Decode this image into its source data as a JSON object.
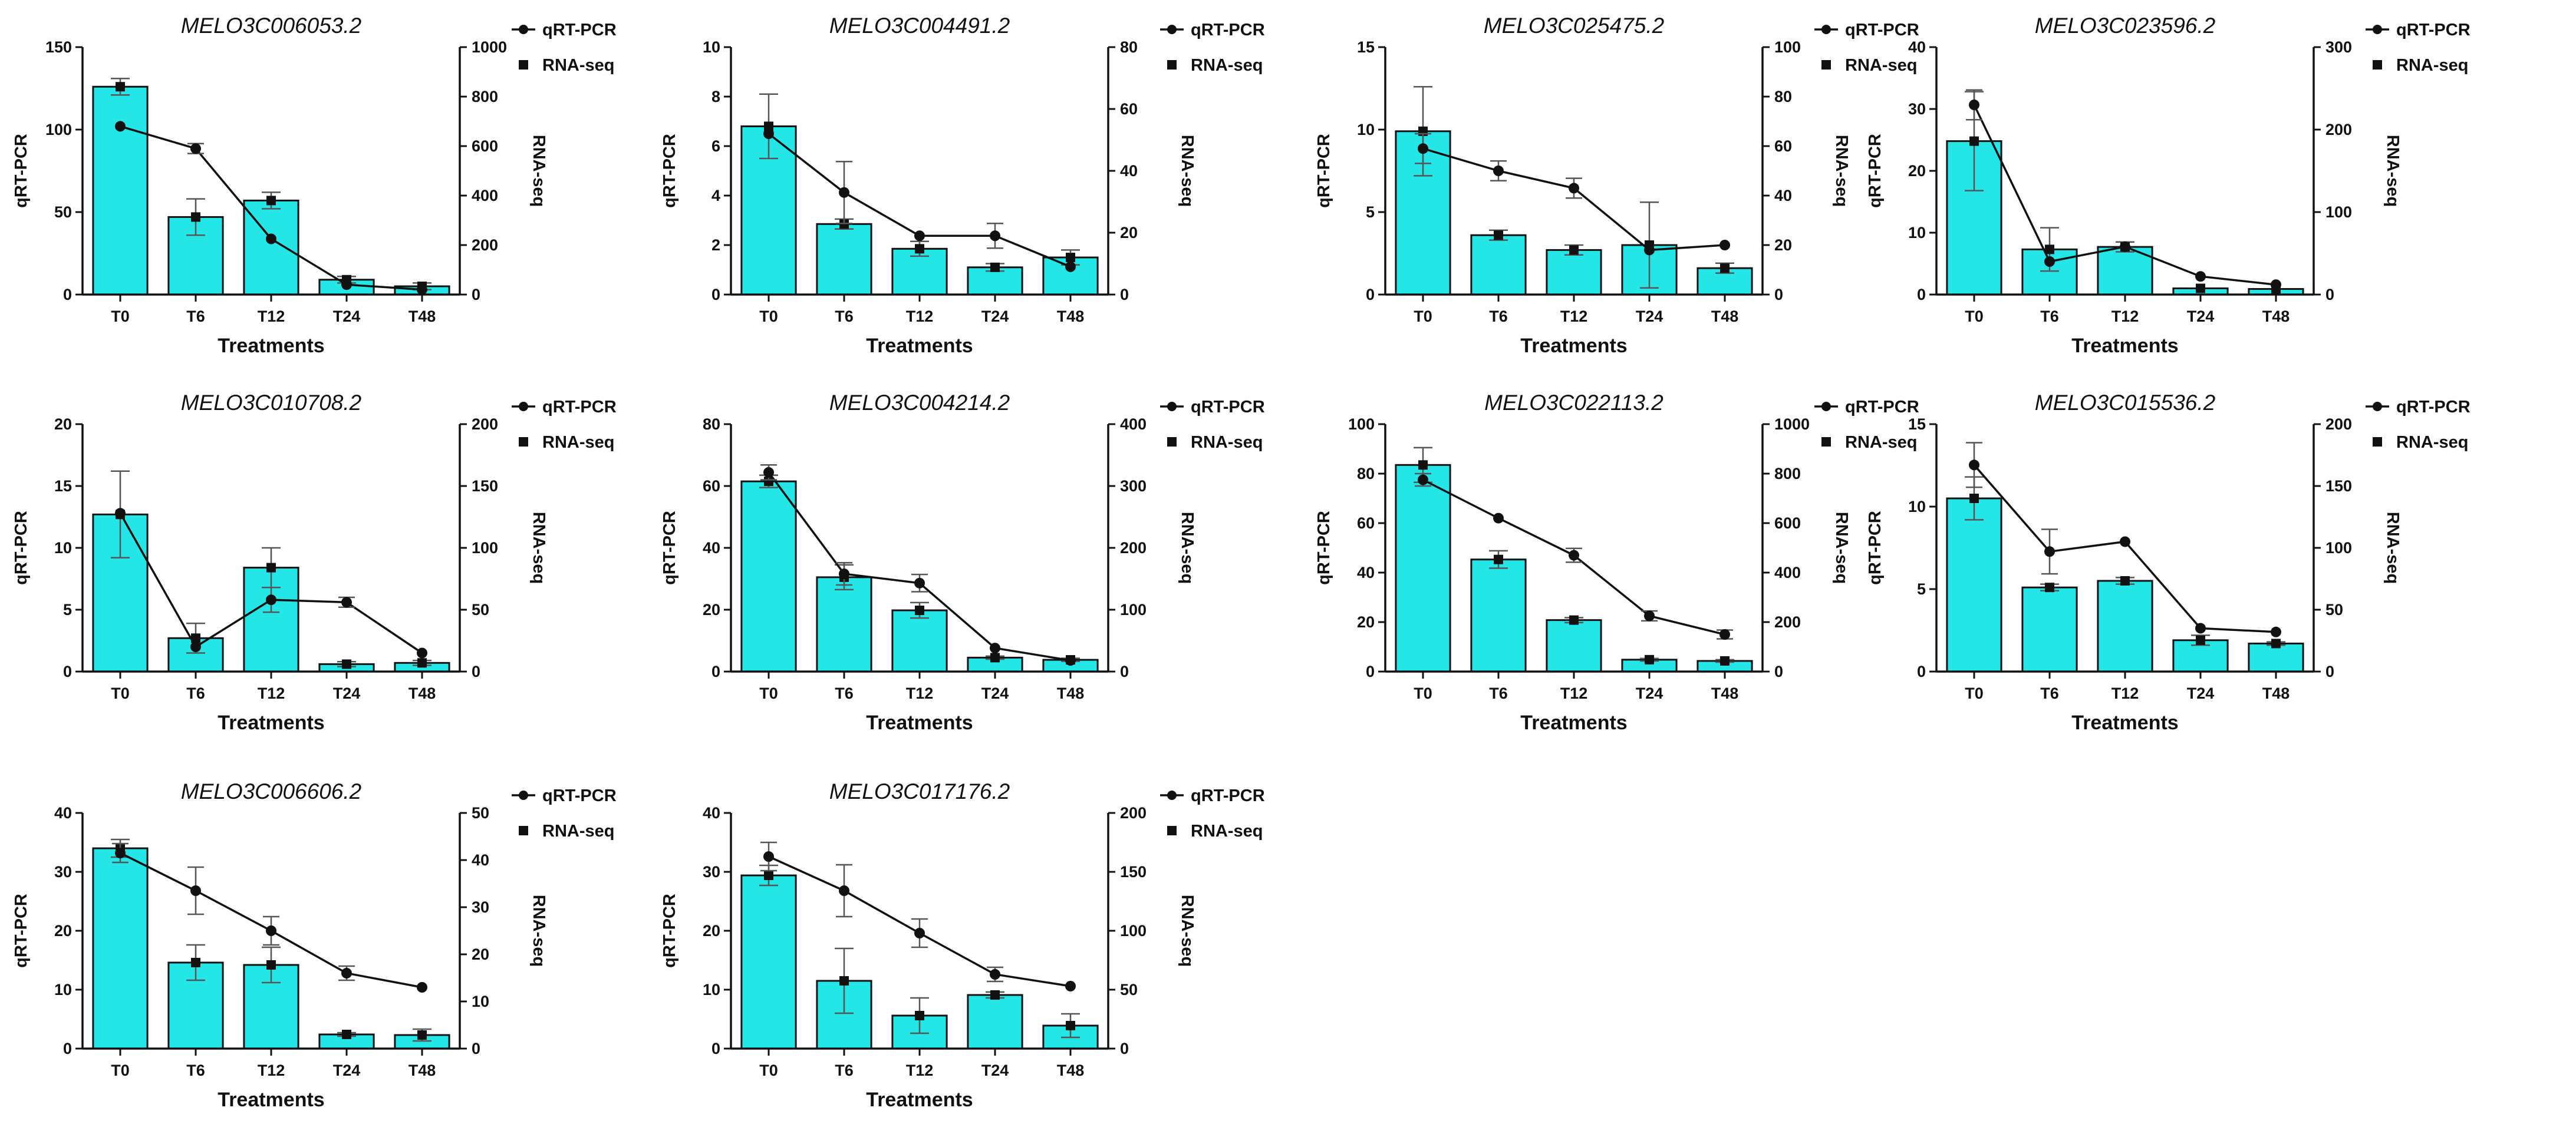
{
  "colors": {
    "bar_fill": "#25e6e6",
    "bar_stroke": "#111111",
    "line": "#111111",
    "axis": "#111111"
  },
  "chart_data": [
    {
      "type": "bar+line",
      "title": "MELO3C006053.2",
      "categories": [
        "T0",
        "T6",
        "T12",
        "T24",
        "T48"
      ],
      "xlabel": "Treatments",
      "ylabel_left": "qRT-PCR",
      "ylabel_right": "RNA-seq",
      "left_axis": {
        "range": [
          0,
          150
        ],
        "ticks": [
          0,
          50,
          100,
          150
        ]
      },
      "right_axis": {
        "range": [
          0,
          1000
        ],
        "ticks": [
          0,
          200,
          400,
          600,
          800,
          1000
        ]
      },
      "qRT_PCR": {
        "axis": "left",
        "values": [
          126,
          47,
          57,
          9,
          5
        ],
        "errors": [
          5,
          11,
          5,
          2,
          2
        ]
      },
      "RNA_seq": {
        "axis": "right",
        "values": [
          680,
          590,
          225,
          40,
          20
        ],
        "errors": [
          0,
          20,
          0,
          0,
          0
        ]
      },
      "legend": [
        "qRT-PCR",
        "RNA-seq"
      ]
    },
    {
      "type": "bar+line",
      "title": "MELO3C004491.2",
      "categories": [
        "T0",
        "T6",
        "T12",
        "T24",
        "T48"
      ],
      "xlabel": "Treatments",
      "ylabel_left": "qRT-PCR",
      "ylabel_right": "RNA-seq",
      "left_axis": {
        "range": [
          0,
          10
        ],
        "ticks": [
          0,
          2,
          4,
          6,
          8,
          10
        ]
      },
      "right_axis": {
        "range": [
          0,
          80
        ],
        "ticks": [
          0,
          20,
          40,
          60,
          80
        ]
      },
      "qRT_PCR": {
        "axis": "left",
        "values": [
          6.8,
          2.85,
          1.85,
          1.1,
          1.5
        ],
        "errors": [
          1.3,
          0.2,
          0.3,
          0.15,
          0.3
        ]
      },
      "RNA_seq": {
        "axis": "right",
        "values": [
          52,
          33,
          19,
          19,
          9
        ],
        "errors": [
          0,
          10,
          0,
          4,
          0
        ]
      },
      "legend": [
        "qRT-PCR",
        "RNA-seq"
      ]
    },
    {
      "type": "bar+line",
      "title": "MELO3C025475.2",
      "categories": [
        "T0",
        "T6",
        "T12",
        "T24",
        "T48"
      ],
      "xlabel": "Treatments",
      "ylabel_left": "qRT-PCR",
      "ylabel_right": "RNA-seq",
      "left_axis": {
        "range": [
          0,
          15
        ],
        "ticks": [
          0,
          5,
          10,
          15
        ]
      },
      "right_axis": {
        "range": [
          0,
          100
        ],
        "ticks": [
          0,
          20,
          40,
          60,
          80,
          100
        ]
      },
      "qRT_PCR": {
        "axis": "left",
        "values": [
          9.9,
          3.6,
          2.7,
          3.0,
          1.6
        ],
        "errors": [
          2.7,
          0.3,
          0.3,
          2.6,
          0.3
        ]
      },
      "RNA_seq": {
        "axis": "right",
        "values": [
          59,
          50,
          43,
          18,
          20
        ],
        "errors": [
          6,
          4,
          4,
          0,
          0
        ]
      },
      "legend": [
        "qRT-PCR",
        "RNA-seq"
      ]
    },
    {
      "type": "bar+line",
      "title": "MELO3C023596.2",
      "categories": [
        "T0",
        "T6",
        "T12",
        "T24",
        "T48"
      ],
      "xlabel": "Treatments",
      "ylabel_left": "qRT-PCR",
      "ylabel_right": "RNA-seq",
      "left_axis": {
        "range": [
          0,
          40
        ],
        "ticks": [
          0,
          10,
          20,
          30,
          40
        ]
      },
      "right_axis": {
        "range": [
          0,
          300
        ],
        "ticks": [
          0,
          100,
          200,
          300
        ]
      },
      "qRT_PCR": {
        "axis": "left",
        "values": [
          24.8,
          7.3,
          7.7,
          1.0,
          0.9
        ],
        "errors": [
          8,
          3.5,
          0.8,
          0,
          0
        ]
      },
      "RNA_seq": {
        "axis": "right",
        "values": [
          230,
          40,
          58,
          22,
          12
        ],
        "errors": [
          18,
          0,
          0,
          0,
          0
        ]
      },
      "legend": [
        "qRT-PCR",
        "RNA-seq"
      ]
    },
    {
      "type": "bar+line",
      "title": "MELO3C010708.2",
      "categories": [
        "T0",
        "T6",
        "T12",
        "T24",
        "T48"
      ],
      "xlabel": "Treatments",
      "ylabel_left": "qRT-PCR",
      "ylabel_right": "RNA-seq",
      "left_axis": {
        "range": [
          0,
          20
        ],
        "ticks": [
          0,
          5,
          10,
          15,
          20
        ]
      },
      "right_axis": {
        "range": [
          0,
          200
        ],
        "ticks": [
          0,
          50,
          100,
          150,
          200
        ]
      },
      "qRT_PCR": {
        "axis": "left",
        "values": [
          12.7,
          2.7,
          8.4,
          0.6,
          0.7
        ],
        "errors": [
          3.5,
          1.2,
          1.6,
          0.2,
          0.2
        ]
      },
      "RNA_seq": {
        "axis": "right",
        "values": [
          128,
          20,
          58,
          56,
          15
        ],
        "errors": [
          0,
          0,
          10,
          4,
          0
        ]
      },
      "legend": [
        "qRT-PCR",
        "RNA-seq"
      ]
    },
    {
      "type": "bar+line",
      "title": "MELO3C004214.2",
      "categories": [
        "T0",
        "T6",
        "T12",
        "T24",
        "T48"
      ],
      "xlabel": "Treatments",
      "ylabel_left": "qRT-PCR",
      "ylabel_right": "RNA-seq",
      "left_axis": {
        "range": [
          0,
          80
        ],
        "ticks": [
          0,
          20,
          40,
          60,
          80
        ]
      },
      "right_axis": {
        "range": [
          0,
          400
        ],
        "ticks": [
          0,
          100,
          200,
          300,
          400
        ]
      },
      "qRT_PCR": {
        "axis": "left",
        "values": [
          61.5,
          30.5,
          19.8,
          4.5,
          3.8
        ],
        "errors": [
          2,
          4,
          2.5,
          0.5,
          0.5
        ]
      },
      "RNA_seq": {
        "axis": "right",
        "values": [
          322,
          158,
          143,
          38,
          18
        ],
        "errors": [
          12,
          18,
          14,
          0,
          0
        ]
      },
      "legend": [
        "qRT-PCR",
        "RNA-seq"
      ]
    },
    {
      "type": "bar+line",
      "title": "MELO3C022113.2",
      "categories": [
        "T0",
        "T6",
        "T12",
        "T24",
        "T48"
      ],
      "xlabel": "Treatments",
      "ylabel_left": "qRT-PCR",
      "ylabel_right": "RNA-seq",
      "left_axis": {
        "range": [
          0,
          100
        ],
        "ticks": [
          0,
          20,
          40,
          60,
          80,
          100
        ]
      },
      "right_axis": {
        "range": [
          0,
          1000
        ],
        "ticks": [
          0,
          200,
          400,
          600,
          800,
          1000
        ]
      },
      "qRT_PCR": {
        "axis": "left",
        "values": [
          83.5,
          45.3,
          20.8,
          4.8,
          4.3
        ],
        "errors": [
          7,
          3.5,
          1,
          0.5,
          0.5
        ]
      },
      "RNA_seq": {
        "axis": "right",
        "values": [
          775,
          620,
          470,
          225,
          150
        ],
        "errors": [
          25,
          0,
          28,
          20,
          18
        ]
      },
      "legend": [
        "qRT-PCR",
        "RNA-seq"
      ]
    },
    {
      "type": "bar+line",
      "title": "MELO3C015536.2",
      "categories": [
        "T0",
        "T6",
        "T12",
        "T24",
        "T48"
      ],
      "xlabel": "Treatments",
      "ylabel_left": "qRT-PCR",
      "ylabel_right": "RNA-seq",
      "left_axis": {
        "range": [
          0,
          15
        ],
        "ticks": [
          0,
          5,
          10,
          15
        ]
      },
      "right_axis": {
        "range": [
          0,
          200
        ],
        "ticks": [
          0,
          50,
          100,
          150,
          200
        ]
      },
      "qRT_PCR": {
        "axis": "left",
        "values": [
          10.5,
          5.1,
          5.5,
          1.9,
          1.7
        ],
        "errors": [
          1.3,
          0.2,
          0.2,
          0.3,
          0.1
        ]
      },
      "RNA_seq": {
        "axis": "right",
        "values": [
          167,
          97,
          105,
          35,
          32
        ],
        "errors": [
          18,
          18,
          0,
          0,
          0
        ]
      },
      "legend": [
        "qRT-PCR",
        "RNA-seq"
      ]
    },
    {
      "type": "bar+line",
      "title": "MELO3C006606.2",
      "categories": [
        "T0",
        "T6",
        "T12",
        "T24",
        "T48"
      ],
      "xlabel": "Treatments",
      "ylabel_left": "qRT-PCR",
      "ylabel_right": "RNA-seq",
      "left_axis": {
        "range": [
          0,
          40
        ],
        "ticks": [
          0,
          10,
          20,
          30,
          40
        ]
      },
      "right_axis": {
        "range": [
          0,
          50
        ],
        "ticks": [
          0,
          10,
          20,
          30,
          40,
          50
        ]
      },
      "qRT_PCR": {
        "axis": "left",
        "values": [
          34,
          14.6,
          14.2,
          2.4,
          2.3
        ],
        "errors": [
          1.5,
          3,
          3,
          0.3,
          1
        ]
      },
      "RNA_seq": {
        "axis": "right",
        "values": [
          41.5,
          33.5,
          25,
          16,
          13
        ],
        "errors": [
          2,
          5,
          3,
          1.5,
          0
        ]
      },
      "legend": [
        "qRT-PCR",
        "RNA-seq"
      ]
    },
    {
      "type": "bar+line",
      "title": "MELO3C017176.2",
      "categories": [
        "T0",
        "T6",
        "T12",
        "T24",
        "T48"
      ],
      "xlabel": "Treatments",
      "ylabel_left": "qRT-PCR",
      "ylabel_right": "RNA-seq",
      "left_axis": {
        "range": [
          0,
          40
        ],
        "ticks": [
          0,
          10,
          20,
          30,
          40
        ]
      },
      "right_axis": {
        "range": [
          0,
          200
        ],
        "ticks": [
          0,
          50,
          100,
          150,
          200
        ]
      },
      "qRT_PCR": {
        "axis": "left",
        "values": [
          29.4,
          11.5,
          5.6,
          9.1,
          3.9
        ],
        "errors": [
          1.7,
          5.5,
          3,
          0.5,
          2
        ]
      },
      "RNA_seq": {
        "axis": "right",
        "values": [
          163,
          134,
          98,
          63,
          53
        ],
        "errors": [
          12,
          22,
          12,
          6,
          0
        ]
      },
      "legend": [
        "qRT-PCR",
        "RNA-seq"
      ]
    }
  ]
}
